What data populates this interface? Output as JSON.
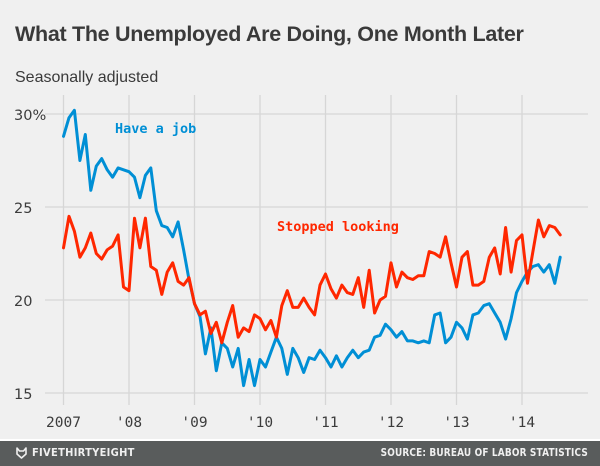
{
  "header": {
    "title": "What The Unemployed Are Doing, One Month Later",
    "subtitle": "Seasonally adjusted"
  },
  "footer": {
    "brand": "FIVETHIRTYEIGHT",
    "brand_icon": "fox-icon",
    "source": "SOURCE: BUREAU OF LABOR STATISTICS"
  },
  "chart_data": {
    "type": "line",
    "title": "What The Unemployed Are Doing, One Month Later",
    "subtitle": "Seasonally adjusted",
    "xlabel": "",
    "ylabel": "",
    "x_start": "2007-01",
    "x_frequency": "monthly",
    "x_tick_labels": [
      "2007",
      "'08",
      "'09",
      "'10",
      "'11",
      "'12",
      "'13",
      "'14"
    ],
    "y_tick_values": [
      15,
      20,
      25,
      30
    ],
    "y_tick_labels": [
      "15",
      "20",
      "25",
      "30%"
    ],
    "ylim": [
      14,
      31.5
    ],
    "xlim": [
      "2006-12",
      "2014-12"
    ],
    "grid": true,
    "legend": "inline labels",
    "series": [
      {
        "name": "Have a job",
        "color": "#008fd5",
        "label_position": "upper-left",
        "values": [
          28.8,
          29.8,
          30.2,
          27.5,
          28.9,
          25.9,
          27.2,
          27.6,
          27.0,
          26.6,
          27.1,
          27.0,
          26.9,
          26.6,
          25.5,
          26.7,
          27.1,
          24.8,
          24.0,
          23.9,
          23.4,
          24.2,
          22.7,
          21.1,
          19.8,
          19.1,
          17.1,
          18.5,
          16.2,
          17.7,
          17.4,
          16.4,
          17.4,
          15.4,
          16.8,
          15.4,
          16.8,
          16.4,
          17.2,
          18.0,
          17.4,
          16.0,
          17.4,
          16.9,
          16.1,
          16.9,
          16.8,
          17.3,
          16.9,
          16.4,
          17.0,
          16.4,
          16.9,
          17.3,
          16.9,
          17.2,
          17.3,
          18.0,
          18.1,
          18.7,
          18.4,
          18.0,
          18.3,
          17.8,
          17.8,
          17.7,
          17.8,
          17.7,
          19.2,
          19.3,
          17.7,
          18.0,
          18.8,
          18.5,
          17.9,
          19.2,
          19.3,
          19.7,
          19.8,
          19.3,
          18.8,
          17.9,
          19.0,
          20.4,
          21.0,
          21.5,
          21.8,
          21.9,
          21.5,
          21.9,
          20.9,
          22.3
        ]
      },
      {
        "name": "Stopped looking",
        "color": "#ff2700",
        "label_position": "middle-center",
        "values": [
          22.8,
          24.5,
          23.7,
          22.3,
          22.8,
          23.6,
          22.5,
          22.2,
          22.7,
          22.9,
          23.5,
          20.7,
          20.5,
          24.4,
          22.8,
          24.4,
          21.8,
          21.6,
          20.3,
          21.5,
          22.0,
          21.0,
          20.8,
          21.2,
          19.8,
          19.2,
          19.4,
          18.2,
          18.8,
          17.7,
          18.8,
          19.7,
          18.0,
          18.5,
          18.3,
          19.2,
          19.0,
          18.4,
          18.9,
          18.0,
          19.7,
          20.5,
          19.6,
          19.6,
          20.1,
          19.6,
          19.2,
          20.8,
          21.4,
          20.6,
          20.1,
          20.8,
          20.4,
          20.3,
          21.2,
          19.6,
          21.6,
          19.3,
          20.0,
          20.2,
          22.0,
          20.7,
          21.5,
          21.2,
          21.1,
          21.3,
          21.3,
          22.6,
          22.5,
          22.3,
          23.4,
          22.0,
          20.7,
          22.3,
          22.6,
          20.8,
          20.8,
          21.0,
          22.3,
          22.8,
          21.4,
          23.9,
          21.5,
          23.2,
          23.5,
          20.9,
          22.6,
          24.3,
          23.4,
          24.0,
          23.9,
          23.5
        ]
      }
    ]
  }
}
